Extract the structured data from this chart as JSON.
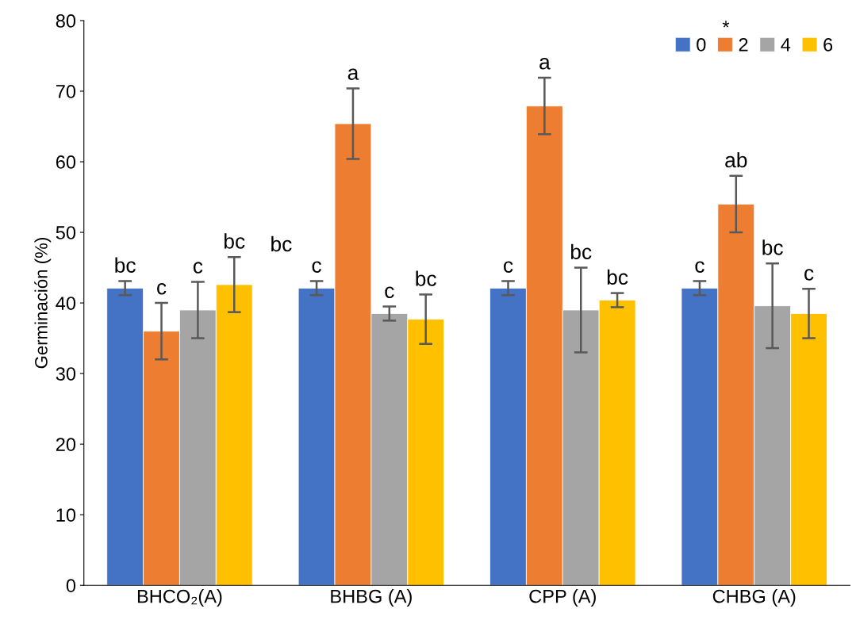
{
  "chart_data": {
    "type": "bar",
    "ylabel": "Germinación (%)",
    "categories": [
      "BHCO₂(A)",
      "BHBG (A)",
      "CPP (A)",
      "CHBG (A)"
    ],
    "series": [
      {
        "name": "0",
        "color": "#4472c4",
        "values": [
          42.1,
          42.1,
          42.1,
          42.1
        ],
        "errors": [
          1,
          1,
          1,
          1
        ],
        "value_labels": [
          "bc",
          "c",
          "c",
          "c"
        ]
      },
      {
        "name": "2",
        "color": "#ed7d31",
        "values": [
          36,
          65.4,
          67.9,
          54
        ],
        "errors": [
          4,
          5,
          4,
          4
        ],
        "value_labels": [
          "c",
          "a",
          "a",
          "ab"
        ]
      },
      {
        "name": "4",
        "color": "#a5a5a5",
        "values": [
          39,
          38.5,
          39,
          39.6
        ],
        "errors": [
          4,
          1,
          6,
          6
        ],
        "value_labels": [
          "c",
          "c",
          "bc",
          "bc"
        ]
      },
      {
        "name": "6",
        "color": "#ffc000",
        "values": [
          42.6,
          37.7,
          40.4,
          38.5
        ],
        "errors": [
          3.9,
          3.5,
          1,
          3.5
        ],
        "value_labels": [
          "bc",
          "bc",
          "bc",
          "c"
        ]
      }
    ],
    "annotations": [
      "bc",
      "*"
    ],
    "ylim": [
      0,
      80
    ],
    "yticks": [
      0,
      10,
      20,
      30,
      40,
      50,
      60,
      70,
      80
    ],
    "grid": false,
    "legend": "top right"
  }
}
